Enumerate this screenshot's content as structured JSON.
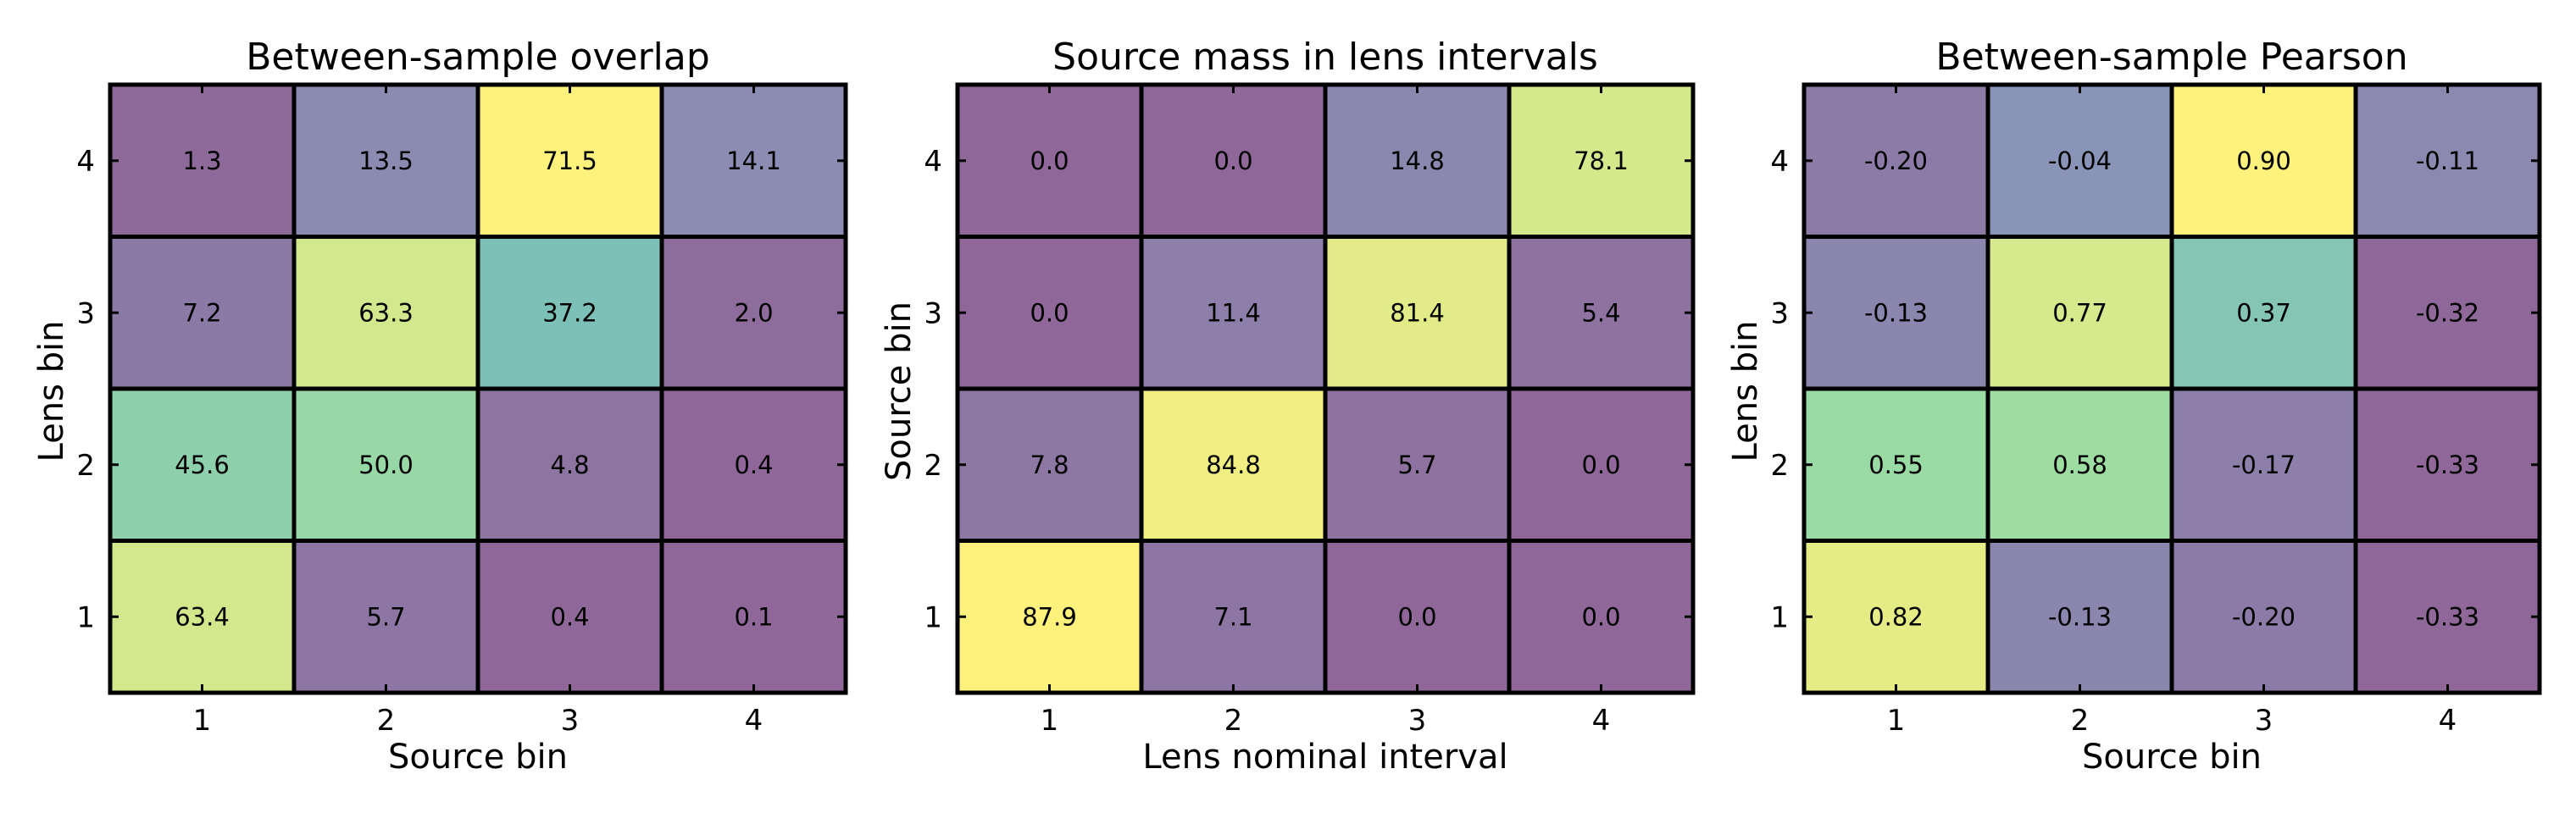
{
  "chart_data": [
    {
      "type": "heatmap",
      "title": "Between-sample overlap",
      "xlabel": "Source bin",
      "ylabel": "Lens bin",
      "x_ticks": [
        "1",
        "2",
        "3",
        "4"
      ],
      "y_ticks": [
        "1",
        "2",
        "3",
        "4"
      ],
      "rows": [
        {
          "y": "4",
          "values": [
            1.3,
            13.5,
            71.5,
            14.1
          ],
          "labels": [
            "1.3",
            "13.5",
            "71.5",
            "14.1"
          ]
        },
        {
          "y": "3",
          "values": [
            7.2,
            63.3,
            37.2,
            2.0
          ],
          "labels": [
            "7.2",
            "63.3",
            "37.2",
            "2.0"
          ]
        },
        {
          "y": "2",
          "values": [
            45.6,
            50.0,
            4.8,
            0.4
          ],
          "labels": [
            "45.6",
            "50.0",
            "4.8",
            "0.4"
          ]
        },
        {
          "y": "1",
          "values": [
            63.4,
            5.7,
            0.4,
            0.1
          ],
          "labels": [
            "63.4",
            "5.7",
            "0.4",
            "0.1"
          ]
        }
      ],
      "vmin": 0,
      "vmax": 71.5
    },
    {
      "type": "heatmap",
      "title": "Source mass in lens intervals",
      "xlabel": "Lens nominal interval",
      "ylabel": "Source bin",
      "x_ticks": [
        "1",
        "2",
        "3",
        "4"
      ],
      "y_ticks": [
        "1",
        "2",
        "3",
        "4"
      ],
      "rows": [
        {
          "y": "4",
          "values": [
            0.0,
            0.0,
            14.8,
            78.1
          ],
          "labels": [
            "0.0",
            "0.0",
            "14.8",
            "78.1"
          ]
        },
        {
          "y": "3",
          "values": [
            0.0,
            11.4,
            81.4,
            5.4
          ],
          "labels": [
            "0.0",
            "11.4",
            "81.4",
            "5.4"
          ]
        },
        {
          "y": "2",
          "values": [
            7.8,
            84.8,
            5.7,
            0.0
          ],
          "labels": [
            "7.8",
            "84.8",
            "5.7",
            "0.0"
          ]
        },
        {
          "y": "1",
          "values": [
            87.9,
            7.1,
            0.0,
            0.0
          ],
          "labels": [
            "87.9",
            "7.1",
            "0.0",
            "0.0"
          ]
        }
      ],
      "vmin": 0,
      "vmax": 87.9
    },
    {
      "type": "heatmap",
      "title": "Between-sample Pearson",
      "xlabel": "Source bin",
      "ylabel": "Lens bin",
      "x_ticks": [
        "1",
        "2",
        "3",
        "4"
      ],
      "y_ticks": [
        "1",
        "2",
        "3",
        "4"
      ],
      "rows": [
        {
          "y": "4",
          "values": [
            -0.2,
            -0.04,
            0.9,
            -0.11
          ],
          "labels": [
            "-0.20",
            "-0.04",
            "0.90",
            "-0.11"
          ]
        },
        {
          "y": "3",
          "values": [
            -0.13,
            0.77,
            0.37,
            -0.32
          ],
          "labels": [
            "-0.13",
            "0.77",
            "0.37",
            "-0.32"
          ]
        },
        {
          "y": "2",
          "values": [
            0.55,
            0.58,
            -0.17,
            -0.33
          ],
          "labels": [
            "0.55",
            "0.58",
            "-0.17",
            "-0.33"
          ]
        },
        {
          "y": "1",
          "values": [
            0.82,
            -0.13,
            -0.2,
            -0.33
          ],
          "labels": [
            "0.82",
            "-0.13",
            "-0.20",
            "-0.33"
          ]
        }
      ],
      "vmin": -0.33,
      "vmax": 0.9
    }
  ],
  "colormap": "viridis",
  "cell_opacity": 0.6
}
